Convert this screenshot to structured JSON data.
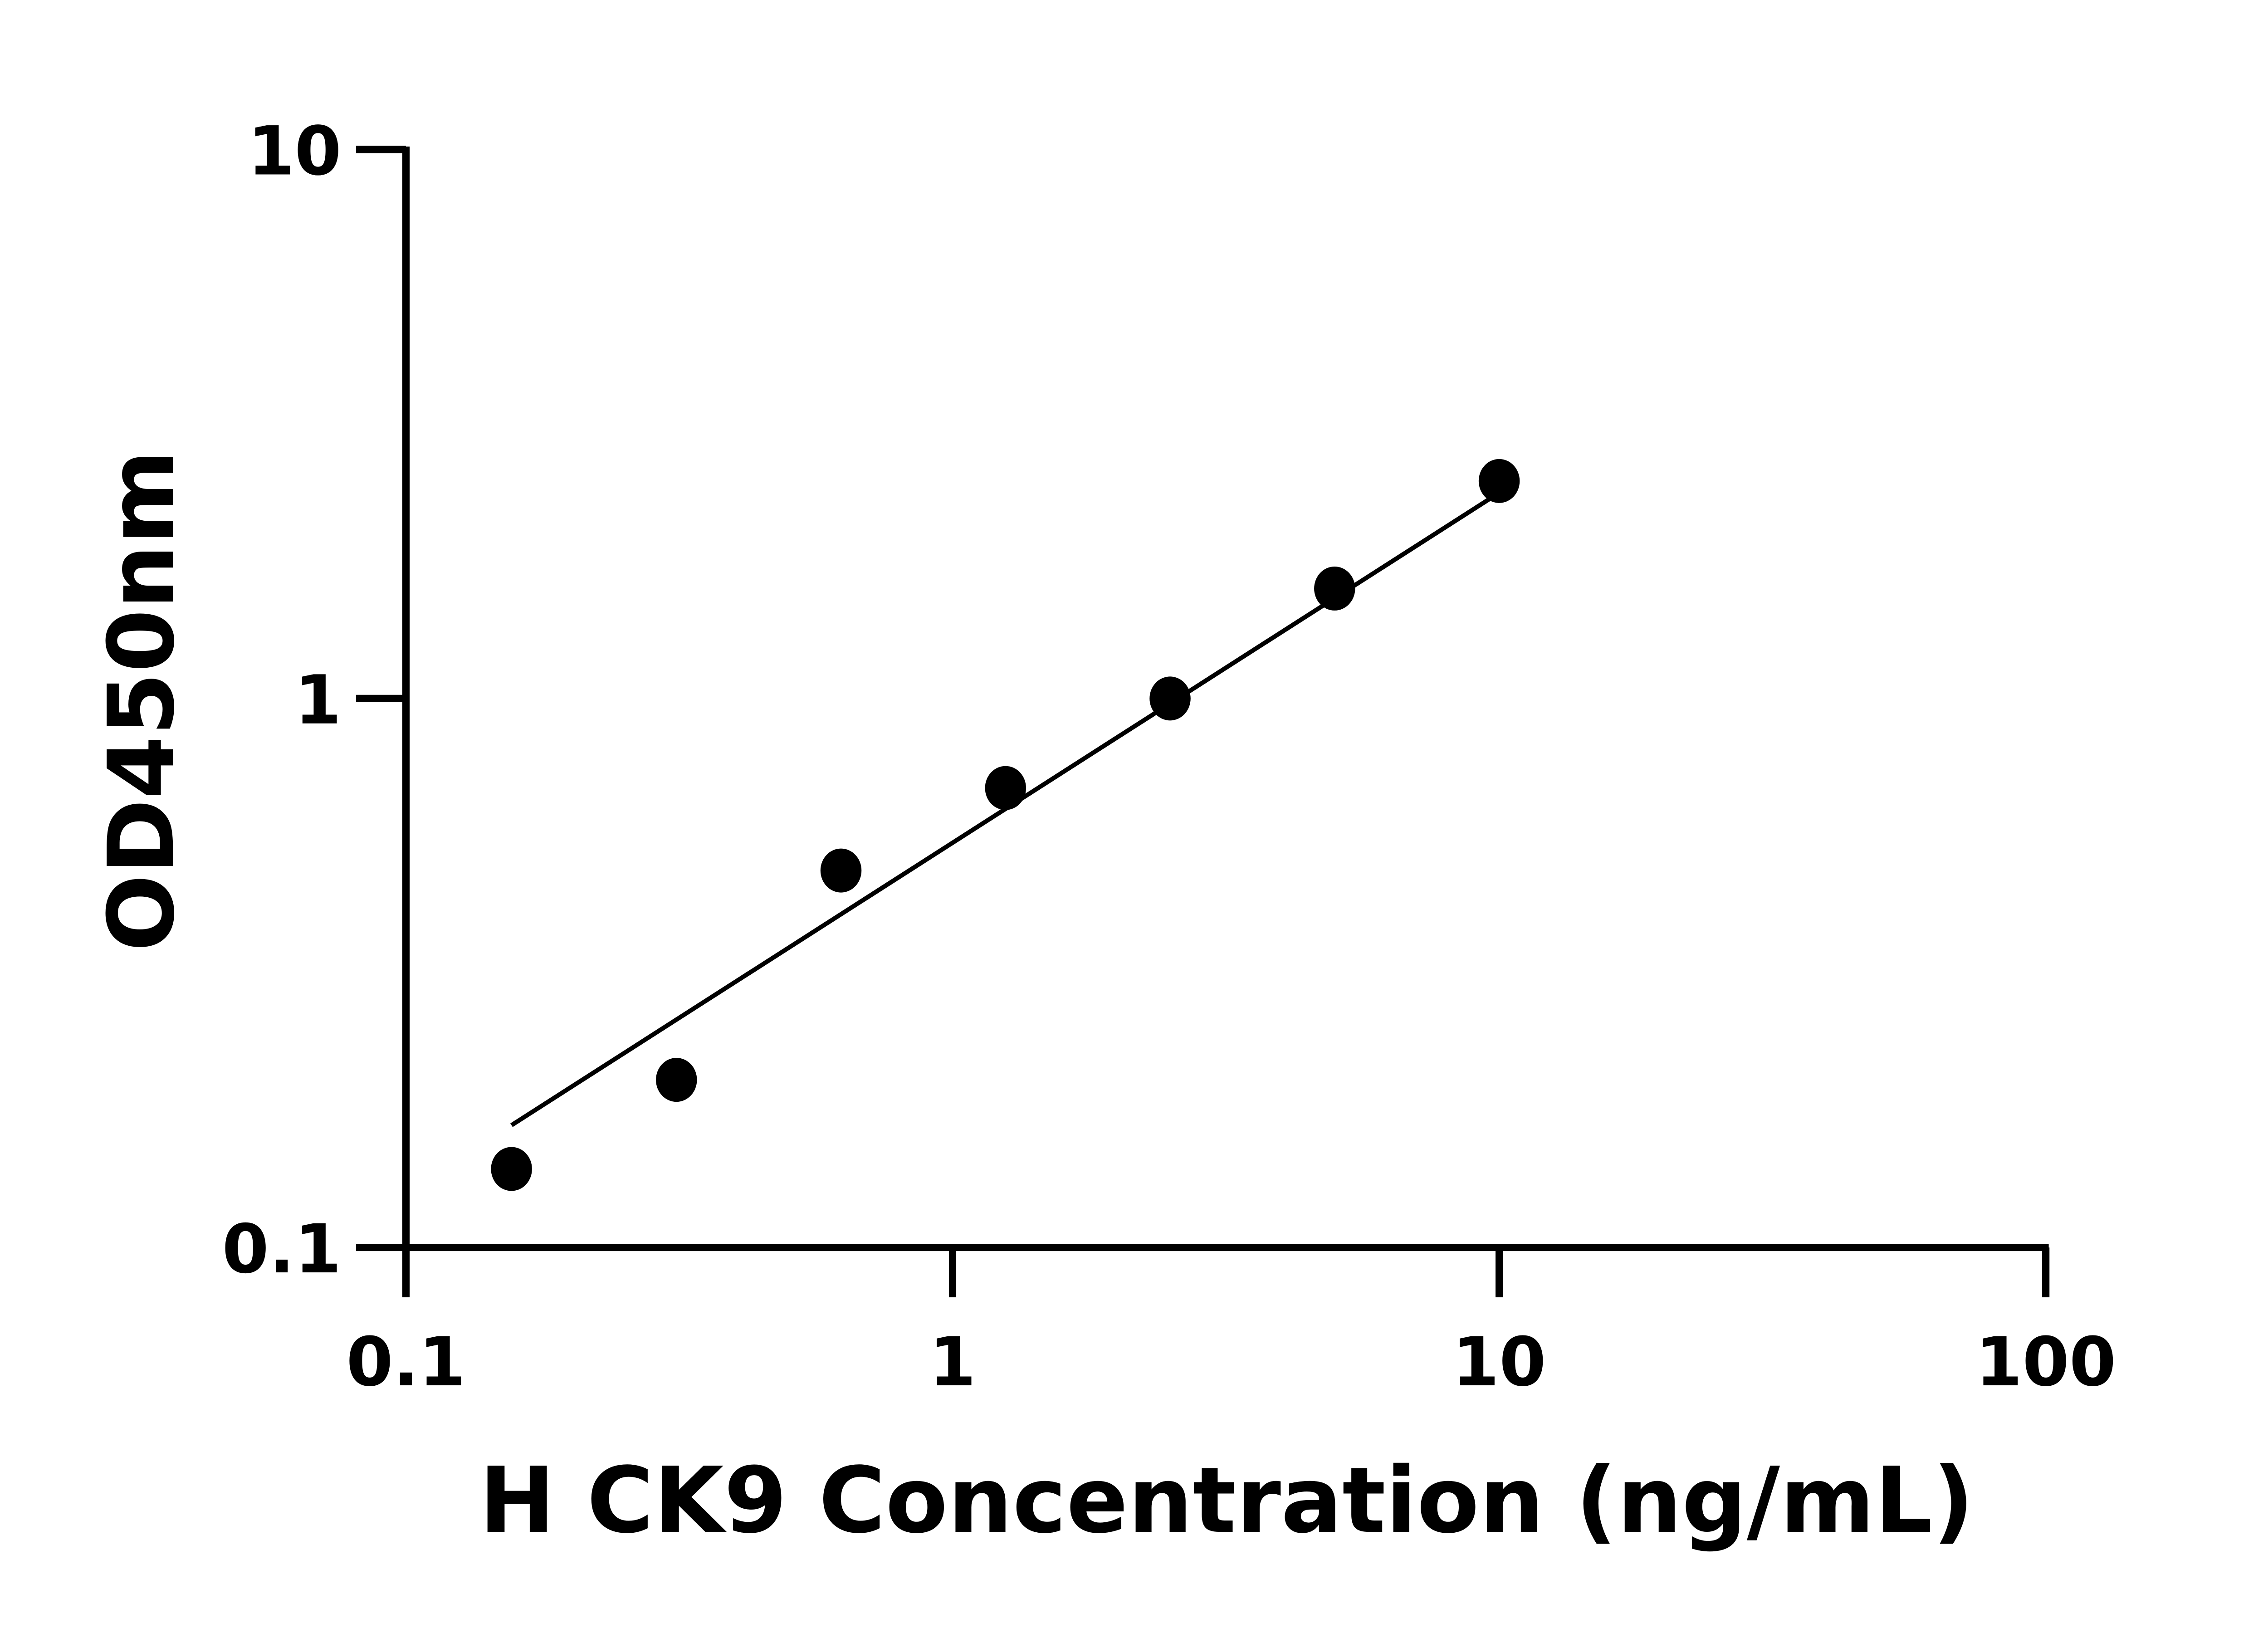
{
  "chart_data": {
    "type": "scatter",
    "title": "",
    "xlabel": "H CK9 Concentration (ng/mL)",
    "ylabel": "OD450nm",
    "x_scale": "log",
    "y_scale": "log",
    "xlim": [
      0.1,
      100
    ],
    "ylim": [
      0.1,
      10
    ],
    "x_ticks": [
      0.1,
      1,
      10,
      100
    ],
    "x_tick_labels": [
      "0.1",
      "1",
      "10",
      "100"
    ],
    "y_ticks": [
      0.1,
      1,
      10
    ],
    "y_tick_labels": [
      "0.1",
      "1",
      "10"
    ],
    "grid": false,
    "colors": {
      "marker": "#000000",
      "line": "#000000",
      "axis": "#000000"
    },
    "points": {
      "x": [
        0.156,
        0.3125,
        0.625,
        1.25,
        2.5,
        5,
        10
      ],
      "y": [
        0.139,
        0.202,
        0.486,
        0.687,
        1.0,
        1.586,
        2.49
      ]
    },
    "fit_line": {
      "x": [
        0.156,
        10
      ],
      "y": [
        0.167,
        2.37
      ]
    }
  }
}
